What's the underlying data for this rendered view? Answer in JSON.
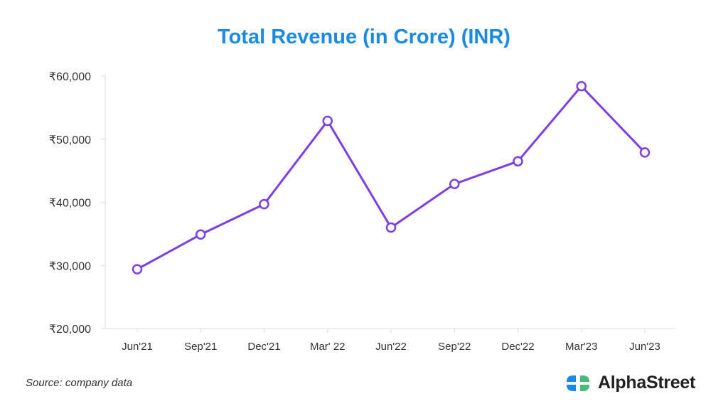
{
  "chart_data": {
    "type": "line",
    "title": "Total Revenue (in Crore) (INR)",
    "xlabel": "",
    "ylabel": "",
    "categories": [
      "Jun'21",
      "Sep'21",
      "Dec'21",
      "Mar' 22",
      "Jun'22",
      "Sep'22",
      "Dec'22",
      "Mar'23",
      "Jun'23"
    ],
    "series": [
      {
        "name": "Total Revenue",
        "values": [
          29400,
          34900,
          39700,
          52900,
          36000,
          42900,
          46500,
          58400,
          47900
        ],
        "color": "#7b3fe4"
      }
    ],
    "ylim": [
      20000,
      60000
    ],
    "yticks": [
      20000,
      30000,
      40000,
      50000,
      60000
    ],
    "ytick_labels": [
      "₹20,000",
      "₹30,000",
      "₹40,000",
      "₹50,000",
      "₹60,000"
    ],
    "grid": false
  },
  "footer": {
    "source": "Source: company data",
    "logo_text": "AlphaStreet"
  },
  "colors": {
    "title": "#1a8ae5",
    "logo_blue": "#1a8ae5",
    "logo_green": "#4cb87a"
  }
}
